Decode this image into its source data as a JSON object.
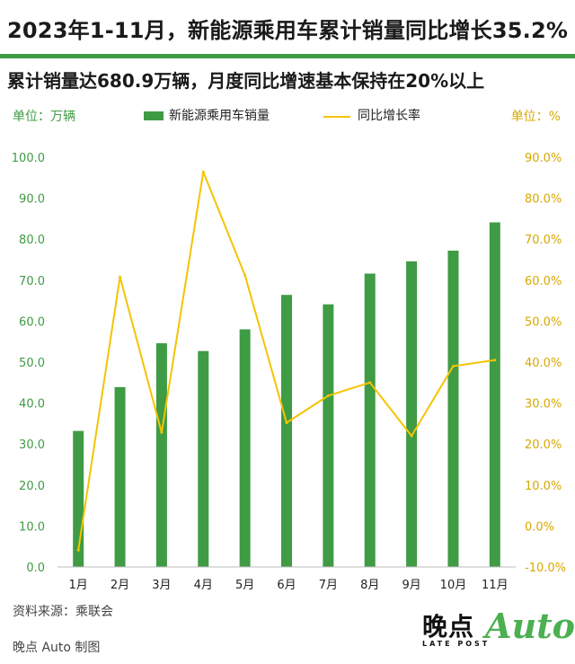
{
  "header": {
    "title": "2023年1-11月，新能源乘用车累计销量同比增长35.2%",
    "subtitle": "累计销量达680.9万辆，月度同比增速基本保持在20%以上",
    "unit_left": "单位：万辆",
    "unit_right": "单位：%"
  },
  "legend": {
    "bar_label": "新能源乘用车销量",
    "line_label": "同比增长率"
  },
  "colors": {
    "bar": "#3f9b44",
    "line": "#f5c400",
    "left_axis_text": "#3f9b44",
    "right_axis_text": "#d8a800"
  },
  "chart_data": {
    "type": "bar",
    "categories": [
      "1月",
      "2月",
      "3月",
      "4月",
      "5月",
      "6月",
      "7月",
      "8月",
      "9月",
      "10月",
      "11月"
    ],
    "series": [
      {
        "name": "新能源乘用车销量",
        "type": "bar",
        "axis": "left",
        "values": [
          33.2,
          43.9,
          54.6,
          52.7,
          58.0,
          66.4,
          64.1,
          71.6,
          74.6,
          77.2,
          84.1
        ]
      },
      {
        "name": "同比增长率",
        "type": "line",
        "axis": "right",
        "values": [
          -5.9,
          60.8,
          22.8,
          86.4,
          61.2,
          25.2,
          31.8,
          35.0,
          22.0,
          39.0,
          40.5
        ]
      }
    ],
    "y_left": {
      "ylim": [
        0,
        100
      ],
      "ticks": [
        "0.0",
        "10.0",
        "20.0",
        "30.0",
        "40.0",
        "50.0",
        "60.0",
        "70.0",
        "80.0",
        "90.0",
        "100.0"
      ]
    },
    "y_right": {
      "ylim": [
        -10,
        90
      ],
      "ticks": [
        "-10.0%",
        "0.0%",
        "10.0%",
        "20.0%",
        "30.0%",
        "40.0%",
        "50.0%",
        "60.0%",
        "70.0%",
        "80.0%",
        "90.0%"
      ]
    },
    "grid": false,
    "legend_position": "top-center"
  },
  "footer": {
    "source": "资料来源：乘联会",
    "credit": "晚点 Auto 制图",
    "logo_cn": "晚点",
    "logo_en": "LATE POST",
    "logo_auto": "Auto"
  }
}
